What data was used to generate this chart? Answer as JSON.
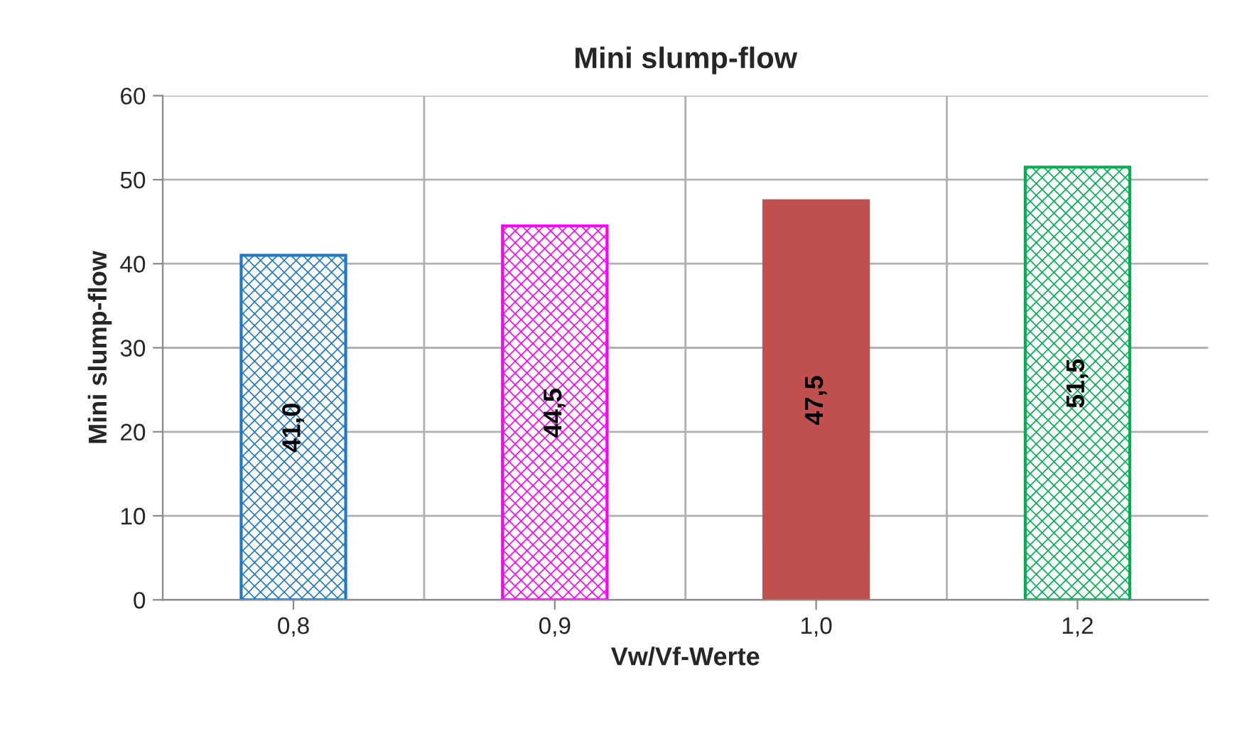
{
  "chart_data": {
    "type": "bar",
    "title": "Mini slump-flow",
    "xlabel": "Vw/Vf-Werte",
    "ylabel": "Mini slump-flow",
    "categories": [
      "0,8",
      "0,9",
      "1,0",
      "1,2"
    ],
    "values": [
      41.0,
      44.5,
      47.5,
      51.5
    ],
    "colors": [
      "#1f78c8",
      "#ff00ff",
      "#c0504d",
      "#00b050"
    ],
    "value_labels": [
      "41,0",
      "44,5",
      "47,5",
      "51,5"
    ],
    "ylim": [
      0,
      60
    ],
    "yticks": [
      0,
      10,
      20,
      30,
      40,
      50,
      60
    ],
    "grid": true,
    "legend": false
  }
}
